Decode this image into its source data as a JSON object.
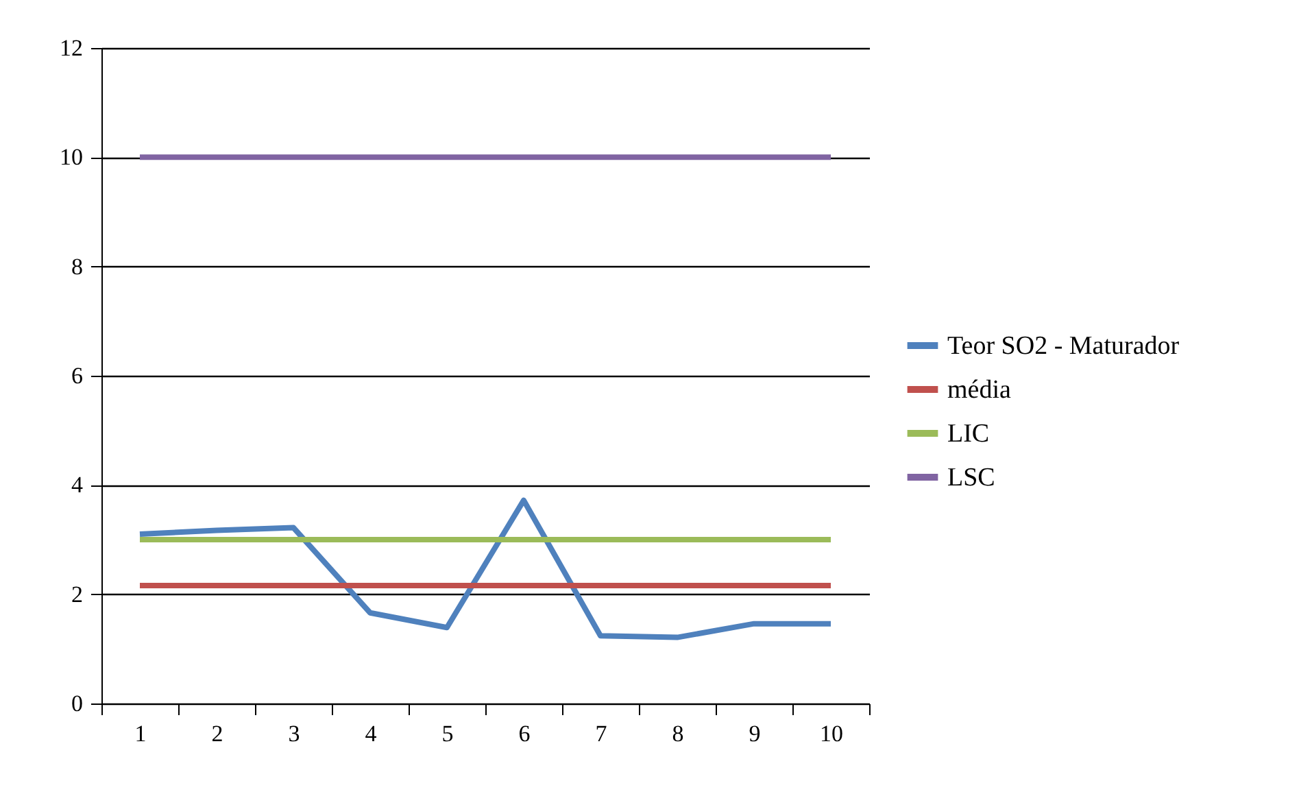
{
  "chart_data": {
    "type": "line",
    "categories": [
      "1",
      "2",
      "3",
      "4",
      "5",
      "6",
      "7",
      "8",
      "9",
      "10"
    ],
    "ylim": [
      0,
      12
    ],
    "yticks": [
      0,
      2,
      4,
      6,
      8,
      10,
      12
    ],
    "grid": "y",
    "legend": "right",
    "marker": "none",
    "line_style": "solid",
    "series": [
      {
        "name": "Teor SO2 - Maturador",
        "color": "#4f81bd",
        "values": [
          3.1,
          3.17,
          3.22,
          1.66,
          1.39,
          3.72,
          1.24,
          1.21,
          1.46,
          1.46
        ]
      },
      {
        "name": "média",
        "color": "#c0504d",
        "values": [
          2.16,
          2.16,
          2.16,
          2.16,
          2.16,
          2.16,
          2.16,
          2.16,
          2.16,
          2.16
        ]
      },
      {
        "name": "LIC",
        "color": "#9bbb59",
        "values": [
          3,
          3,
          3,
          3,
          3,
          3,
          3,
          3,
          3,
          3
        ]
      },
      {
        "name": "LSC",
        "color": "#8064a2",
        "values": [
          10,
          10,
          10,
          10,
          10,
          10,
          10,
          10,
          10,
          10
        ]
      }
    ]
  }
}
